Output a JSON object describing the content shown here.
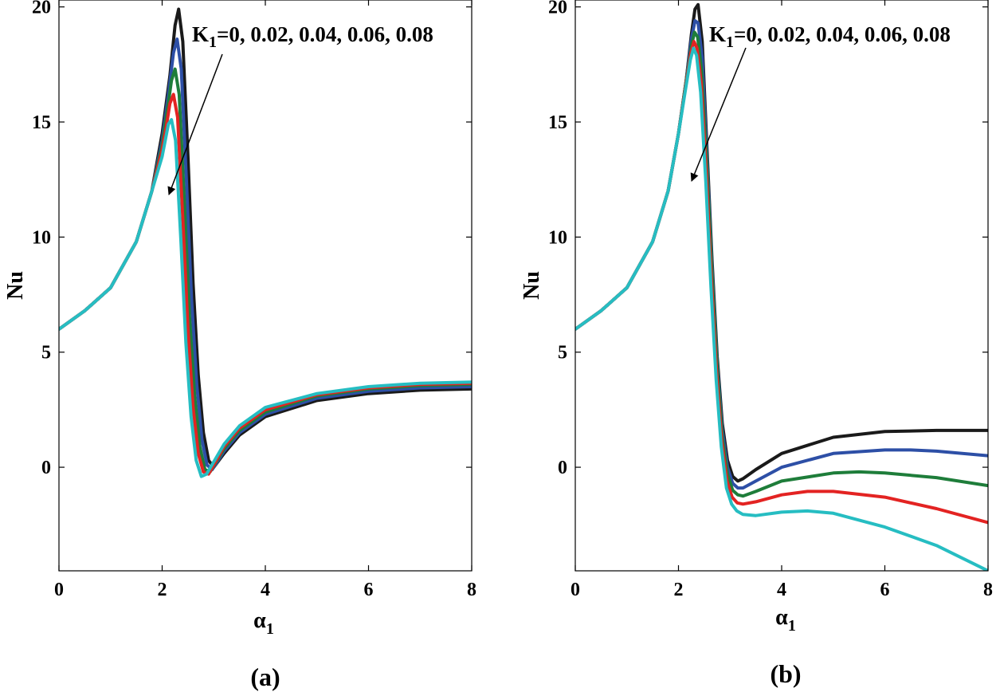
{
  "chart_data": [
    {
      "type": "line",
      "panel_label": "(a)",
      "xlabel": "α",
      "xlabel_sub": "1",
      "ylabel": "Nu",
      "xlim": [
        0,
        8
      ],
      "ylim": [
        -4.5,
        20.3
      ],
      "xticks": [
        0,
        2,
        4,
        6,
        8
      ],
      "yticks": [
        0,
        5,
        10,
        15,
        20
      ],
      "annotation": {
        "prefix": "K",
        "sub": "1",
        "text": "=0, 0.02, 0.04, 0.06, 0.08"
      },
      "series": [
        {
          "name": "K1=0",
          "color": "#1a1a1a",
          "width": 4,
          "x": [
            0,
            0.5,
            1,
            1.5,
            1.8,
            2.0,
            2.15,
            2.25,
            2.32,
            2.4,
            2.5,
            2.6,
            2.7,
            2.8,
            2.9,
            3.0,
            3.2,
            3.5,
            4.0,
            5.0,
            6.0,
            7.0,
            8.0
          ],
          "y": [
            6.0,
            6.8,
            7.8,
            9.8,
            12.0,
            14.5,
            17.0,
            19.2,
            19.9,
            18.5,
            13.5,
            8.0,
            4.0,
            1.5,
            0.3,
            0.0,
            0.6,
            1.4,
            2.2,
            2.9,
            3.2,
            3.35,
            3.4
          ]
        },
        {
          "name": "K1=0.02",
          "color": "#2d4fa6",
          "width": 4,
          "x": [
            0,
            0.5,
            1,
            1.5,
            1.8,
            2.0,
            2.12,
            2.22,
            2.29,
            2.37,
            2.47,
            2.57,
            2.67,
            2.77,
            2.87,
            2.97,
            3.2,
            3.5,
            4.0,
            5.0,
            6.0,
            7.0,
            8.0
          ],
          "y": [
            6.0,
            6.8,
            7.8,
            9.8,
            12.0,
            14.2,
            16.2,
            18.0,
            18.6,
            17.3,
            12.5,
            7.3,
            3.6,
            1.2,
            0.1,
            -0.1,
            0.7,
            1.5,
            2.3,
            3.0,
            3.3,
            3.45,
            3.5
          ]
        },
        {
          "name": "K1=0.04",
          "color": "#1e7d3a",
          "width": 4,
          "x": [
            0,
            0.5,
            1,
            1.5,
            1.8,
            2.0,
            2.1,
            2.18,
            2.25,
            2.33,
            2.43,
            2.53,
            2.63,
            2.73,
            2.83,
            2.93,
            3.2,
            3.5,
            4.0,
            5.0,
            6.0,
            7.0,
            8.0
          ],
          "y": [
            6.0,
            6.8,
            7.8,
            9.8,
            12.0,
            14.0,
            15.5,
            16.8,
            17.3,
            16.2,
            11.6,
            6.6,
            3.1,
            0.9,
            -0.1,
            -0.2,
            0.8,
            1.6,
            2.4,
            3.1,
            3.4,
            3.55,
            3.6
          ]
        },
        {
          "name": "K1=0.06",
          "color": "#e32322",
          "width": 4,
          "x": [
            0,
            0.5,
            1,
            1.5,
            1.8,
            2.0,
            2.08,
            2.15,
            2.22,
            2.3,
            2.4,
            2.5,
            2.6,
            2.7,
            2.8,
            2.9,
            3.2,
            3.5,
            4.0,
            5.0,
            6.0,
            7.0,
            8.0
          ],
          "y": [
            6.0,
            6.8,
            7.8,
            9.8,
            12.0,
            13.8,
            14.8,
            15.8,
            16.2,
            15.2,
            10.8,
            6.0,
            2.6,
            0.6,
            -0.2,
            -0.3,
            0.9,
            1.7,
            2.5,
            3.15,
            3.45,
            3.6,
            3.65
          ]
        },
        {
          "name": "K1=0.08",
          "color": "#26bdc2",
          "width": 4,
          "x": [
            0,
            0.5,
            1,
            1.5,
            1.8,
            2.0,
            2.06,
            2.12,
            2.18,
            2.26,
            2.36,
            2.46,
            2.56,
            2.66,
            2.76,
            2.86,
            3.2,
            3.5,
            4.0,
            5.0,
            6.0,
            7.0,
            8.0
          ],
          "y": [
            6.0,
            6.8,
            7.8,
            9.8,
            12.0,
            13.5,
            14.2,
            14.9,
            15.1,
            14.2,
            10.0,
            5.4,
            2.2,
            0.3,
            -0.4,
            -0.3,
            1.0,
            1.8,
            2.6,
            3.2,
            3.5,
            3.65,
            3.7
          ]
        }
      ]
    },
    {
      "type": "line",
      "panel_label": "(b)",
      "xlabel": "α",
      "xlabel_sub": "1",
      "ylabel": "Nu",
      "xlim": [
        0,
        8
      ],
      "ylim": [
        -4.5,
        20.3
      ],
      "xticks": [
        0,
        2,
        4,
        6,
        8
      ],
      "yticks": [
        0,
        5,
        10,
        15,
        20
      ],
      "annotation": {
        "prefix": "K",
        "sub": "1",
        "text": "=0, 0.02, 0.04, 0.06, 0.08"
      },
      "series": [
        {
          "name": "K1=0",
          "color": "#1a1a1a",
          "width": 4,
          "x": [
            0,
            0.5,
            1,
            1.5,
            1.8,
            2.0,
            2.15,
            2.25,
            2.32,
            2.38,
            2.46,
            2.55,
            2.65,
            2.75,
            2.85,
            2.95,
            3.05,
            3.15,
            3.25,
            3.5,
            4.0,
            5.0,
            6.0,
            7.0,
            8.0
          ],
          "y": [
            6.0,
            6.8,
            7.8,
            9.8,
            12.0,
            14.5,
            16.8,
            18.8,
            19.9,
            20.1,
            18.5,
            14.0,
            9.0,
            4.8,
            1.9,
            0.3,
            -0.4,
            -0.6,
            -0.5,
            -0.1,
            0.6,
            1.3,
            1.55,
            1.6,
            1.6
          ]
        },
        {
          "name": "K1=0.02",
          "color": "#2d4fa6",
          "width": 4,
          "x": [
            0,
            0.5,
            1,
            1.5,
            1.8,
            2.0,
            2.15,
            2.25,
            2.32,
            2.38,
            2.46,
            2.55,
            2.65,
            2.75,
            2.85,
            2.95,
            3.05,
            3.15,
            3.25,
            3.5,
            4.0,
            5.0,
            6.0,
            6.5,
            7.0,
            8.0
          ],
          "y": [
            6.0,
            6.8,
            7.8,
            9.8,
            12.0,
            14.5,
            16.8,
            18.6,
            19.4,
            19.3,
            17.8,
            13.6,
            8.7,
            4.5,
            1.6,
            0.0,
            -0.7,
            -0.9,
            -0.9,
            -0.6,
            0.0,
            0.6,
            0.75,
            0.75,
            0.7,
            0.5
          ]
        },
        {
          "name": "K1=0.04",
          "color": "#1e7d3a",
          "width": 4,
          "x": [
            0,
            0.5,
            1,
            1.5,
            1.8,
            2.0,
            2.15,
            2.25,
            2.31,
            2.37,
            2.45,
            2.55,
            2.65,
            2.75,
            2.85,
            2.95,
            3.05,
            3.15,
            3.25,
            3.5,
            4.0,
            5.0,
            5.5,
            6.0,
            7.0,
            8.0
          ],
          "y": [
            6.0,
            6.8,
            7.8,
            9.8,
            12.0,
            14.5,
            16.8,
            18.3,
            18.9,
            18.7,
            17.2,
            13.2,
            8.4,
            4.3,
            1.3,
            -0.3,
            -1.0,
            -1.2,
            -1.25,
            -1.05,
            -0.6,
            -0.25,
            -0.2,
            -0.25,
            -0.45,
            -0.8
          ]
        },
        {
          "name": "K1=0.06",
          "color": "#e32322",
          "width": 4,
          "x": [
            0,
            0.5,
            1,
            1.5,
            1.8,
            2.0,
            2.15,
            2.24,
            2.3,
            2.36,
            2.44,
            2.54,
            2.64,
            2.74,
            2.84,
            2.94,
            3.04,
            3.14,
            3.25,
            3.5,
            4.0,
            4.5,
            5.0,
            6.0,
            7.0,
            8.0
          ],
          "y": [
            6.0,
            6.8,
            7.8,
            9.8,
            12.0,
            14.5,
            16.7,
            18.0,
            18.5,
            18.2,
            16.7,
            12.8,
            8.1,
            4.1,
            1.1,
            -0.6,
            -1.3,
            -1.55,
            -1.6,
            -1.5,
            -1.2,
            -1.05,
            -1.05,
            -1.3,
            -1.8,
            -2.4
          ]
        },
        {
          "name": "K1=0.08",
          "color": "#26bdc2",
          "width": 4,
          "x": [
            0,
            0.5,
            1,
            1.5,
            1.8,
            2.0,
            2.15,
            2.23,
            2.29,
            2.35,
            2.43,
            2.53,
            2.63,
            2.73,
            2.83,
            2.93,
            3.03,
            3.13,
            3.25,
            3.5,
            4.0,
            4.5,
            5.0,
            6.0,
            7.0,
            8.0
          ],
          "y": [
            6.0,
            6.8,
            7.8,
            9.8,
            12.0,
            14.5,
            16.6,
            17.7,
            18.2,
            17.9,
            16.3,
            12.4,
            7.8,
            3.8,
            0.9,
            -0.9,
            -1.6,
            -1.9,
            -2.05,
            -2.1,
            -1.95,
            -1.9,
            -2.0,
            -2.6,
            -3.4,
            -4.5
          ]
        }
      ]
    }
  ]
}
